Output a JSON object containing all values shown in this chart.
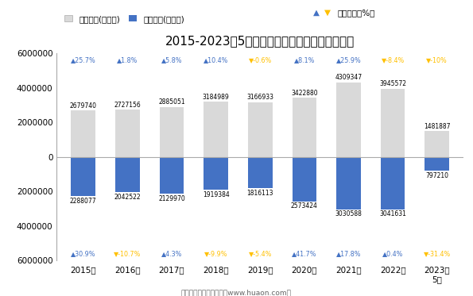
{
  "title": "2015-2023年5月郑州新郑综合保税区进、出口额",
  "years": [
    "2015年",
    "2016年",
    "2017年",
    "2018年",
    "2019年",
    "2020年",
    "2021年",
    "2022年",
    "2023年\n5月"
  ],
  "export_values": [
    2679740,
    2727156,
    2885051,
    3184989,
    3166933,
    3422880,
    4309347,
    3945572,
    1481887
  ],
  "import_values": [
    2288077,
    2042522,
    2129970,
    1919384,
    1816113,
    2573424,
    3030588,
    3041631,
    797210
  ],
  "export_growth_labels": [
    "▲25.7%",
    "▲1.8%",
    "▲5.8%",
    "▲10.4%",
    "▼-0.6%",
    "▲8.1%",
    "▲25.9%",
    "▼-8.4%",
    "▼-10%"
  ],
  "export_growth_up": [
    true,
    true,
    true,
    true,
    false,
    true,
    true,
    false,
    false
  ],
  "import_growth_labels": [
    "▲30.9%",
    "▼-10.7%",
    "▲4.3%",
    "▼-9.9%",
    "▼-5.4%",
    "▲41.7%",
    "▲17.8%",
    "▲0.4%",
    "▼-31.4%"
  ],
  "import_growth_up": [
    true,
    false,
    true,
    false,
    false,
    true,
    true,
    true,
    false
  ],
  "export_color": "#d9d9d9",
  "import_color": "#4472c4",
  "up_color": "#4472c4",
  "down_color": "#ffc000",
  "bar_width": 0.55,
  "ylim": [
    -6000000,
    6000000
  ],
  "yticks": [
    -6000000,
    -4000000,
    -2000000,
    0,
    2000000,
    4000000,
    6000000
  ],
  "footer": "制图：华经产业研究院（www.huaon.com）"
}
